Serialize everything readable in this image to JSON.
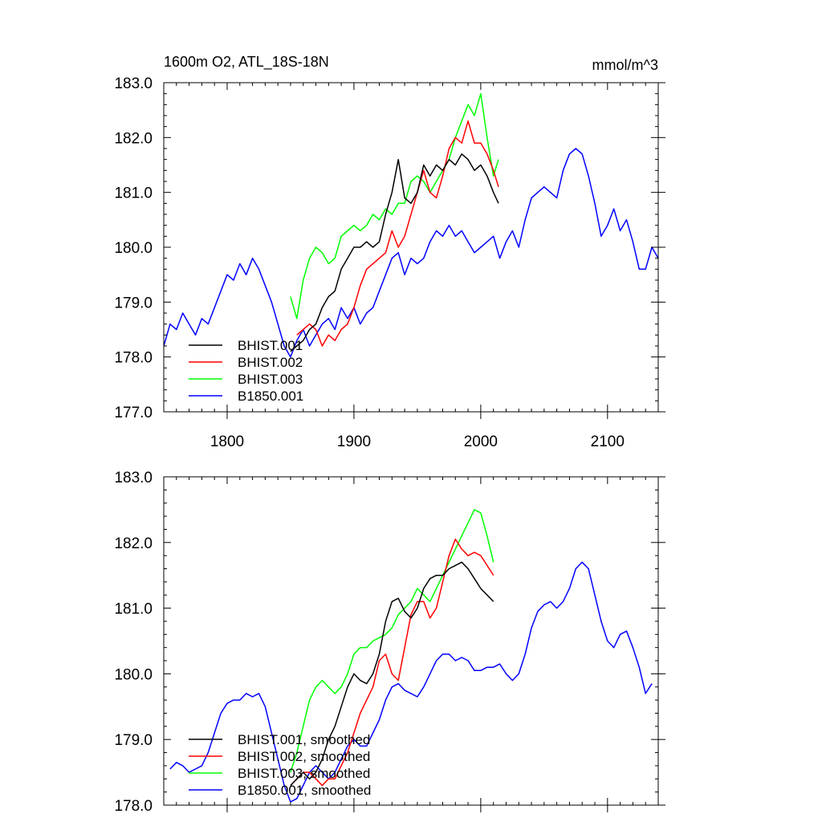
{
  "chart_data": [
    {
      "type": "line",
      "title": "1600m O2, ATL_18S-18N",
      "units": "mmol/m^3",
      "xlim": [
        1750,
        2140
      ],
      "ylim": [
        177,
        183
      ],
      "xticks": [
        1800,
        1900,
        2000,
        2100
      ],
      "xtick_labels": [
        "1800",
        "1900",
        "2000",
        "2100"
      ],
      "yticks": [
        177,
        178,
        179,
        180,
        181,
        182,
        183
      ],
      "ytick_labels": [
        "177.0",
        "178.0",
        "179.0",
        "180.0",
        "181.0",
        "182.0",
        "183.0"
      ],
      "grid": false,
      "legend_position": "bottom-left",
      "series": [
        {
          "name": "BHIST.001",
          "color": "#000000",
          "x": [
            1850,
            1855,
            1860,
            1865,
            1870,
            1875,
            1880,
            1885,
            1890,
            1895,
            1900,
            1905,
            1910,
            1915,
            1920,
            1925,
            1930,
            1935,
            1940,
            1945,
            1950,
            1955,
            1960,
            1965,
            1970,
            1975,
            1980,
            1985,
            1990,
            1995,
            2000,
            2005,
            2010,
            2014
          ],
          "y": [
            178.1,
            178.2,
            178.3,
            178.5,
            178.6,
            178.9,
            179.1,
            179.2,
            179.6,
            179.8,
            180.0,
            180.0,
            180.1,
            180.0,
            180.1,
            180.6,
            181.0,
            181.6,
            180.9,
            180.8,
            181.0,
            181.5,
            181.3,
            181.5,
            181.4,
            181.6,
            181.5,
            181.7,
            181.6,
            181.4,
            181.5,
            181.3,
            181.0,
            180.8
          ]
        },
        {
          "name": "BHIST.002",
          "color": "#ff0000",
          "x": [
            1855,
            1860,
            1865,
            1870,
            1875,
            1880,
            1885,
            1890,
            1895,
            1900,
            1905,
            1910,
            1915,
            1920,
            1925,
            1930,
            1935,
            1940,
            1945,
            1950,
            1955,
            1960,
            1965,
            1970,
            1975,
            1980,
            1985,
            1990,
            1995,
            2000,
            2005,
            2010,
            2014
          ],
          "y": [
            178.4,
            178.5,
            178.6,
            178.5,
            178.2,
            178.4,
            178.3,
            178.5,
            178.6,
            178.9,
            179.3,
            179.6,
            179.7,
            179.8,
            179.9,
            180.3,
            180.0,
            180.2,
            180.6,
            181.0,
            181.4,
            181.0,
            180.9,
            181.3,
            181.8,
            182.0,
            181.9,
            182.3,
            181.9,
            181.9,
            181.7,
            181.4,
            181.1
          ]
        },
        {
          "name": "BHIST.003",
          "color": "#00ff00",
          "x": [
            1850,
            1855,
            1860,
            1865,
            1870,
            1875,
            1880,
            1885,
            1890,
            1895,
            1900,
            1905,
            1910,
            1915,
            1920,
            1925,
            1930,
            1935,
            1940,
            1945,
            1950,
            1955,
            1960,
            1965,
            1970,
            1975,
            1980,
            1985,
            1990,
            1995,
            2000,
            2005,
            2010,
            2014
          ],
          "y": [
            179.1,
            178.7,
            179.4,
            179.8,
            180.0,
            179.9,
            179.7,
            179.8,
            180.2,
            180.3,
            180.4,
            180.3,
            180.4,
            180.6,
            180.5,
            180.7,
            180.6,
            180.8,
            180.8,
            181.2,
            181.3,
            181.2,
            181.0,
            181.2,
            181.4,
            181.6,
            182.0,
            182.3,
            182.6,
            182.4,
            182.8,
            182.0,
            181.3,
            181.6
          ]
        },
        {
          "name": "B1850.001",
          "color": "#0000ff",
          "x": [
            1750,
            1755,
            1760,
            1765,
            1770,
            1775,
            1780,
            1785,
            1790,
            1795,
            1800,
            1805,
            1810,
            1815,
            1820,
            1825,
            1830,
            1835,
            1840,
            1845,
            1850,
            1855,
            1860,
            1865,
            1870,
            1875,
            1880,
            1885,
            1890,
            1895,
            1900,
            1905,
            1910,
            1915,
            1920,
            1925,
            1930,
            1935,
            1940,
            1945,
            1950,
            1955,
            1960,
            1965,
            1970,
            1975,
            1980,
            1985,
            1990,
            1995,
            2000,
            2005,
            2010,
            2015,
            2020,
            2025,
            2030,
            2035,
            2040,
            2045,
            2050,
            2055,
            2060,
            2065,
            2070,
            2075,
            2080,
            2085,
            2090,
            2095,
            2100,
            2105,
            2110,
            2115,
            2120,
            2125,
            2130,
            2135,
            2140
          ],
          "y": [
            178.2,
            178.6,
            178.5,
            178.8,
            178.6,
            178.4,
            178.7,
            178.6,
            178.9,
            179.2,
            179.5,
            179.4,
            179.7,
            179.5,
            179.8,
            179.6,
            179.3,
            179.0,
            178.6,
            178.2,
            178.0,
            178.3,
            178.5,
            178.2,
            178.4,
            178.6,
            178.7,
            178.5,
            178.9,
            178.7,
            178.9,
            178.6,
            178.8,
            178.9,
            179.2,
            179.5,
            179.8,
            179.9,
            179.5,
            179.8,
            179.7,
            179.8,
            180.1,
            180.3,
            180.2,
            180.4,
            180.2,
            180.3,
            180.1,
            179.9,
            180.0,
            180.1,
            180.2,
            179.8,
            180.1,
            180.3,
            180.0,
            180.5,
            180.9,
            181.0,
            181.1,
            181.0,
            180.9,
            181.4,
            181.7,
            181.8,
            181.7,
            181.3,
            180.8,
            180.2,
            180.4,
            180.7,
            180.3,
            180.5,
            180.1,
            179.6,
            179.6,
            180.0,
            179.8
          ]
        }
      ]
    },
    {
      "type": "line",
      "title": "",
      "xlim": [
        1750,
        2140
      ],
      "ylim": [
        178,
        183
      ],
      "xticks": [
        1800,
        1900,
        2000,
        2100
      ],
      "xtick_labels": [
        "",
        "",
        "",
        ""
      ],
      "yticks": [
        178,
        179,
        180,
        181,
        182,
        183
      ],
      "ytick_labels": [
        "178.0",
        "179.0",
        "180.0",
        "181.0",
        "182.0",
        "183.0"
      ],
      "grid": false,
      "legend_position": "bottom-left",
      "series": [
        {
          "name": "BHIST.001, smoothed",
          "color": "#000000",
          "x": [
            1850,
            1855,
            1860,
            1865,
            1870,
            1875,
            1880,
            1885,
            1890,
            1895,
            1900,
            1905,
            1910,
            1915,
            1920,
            1925,
            1930,
            1935,
            1940,
            1945,
            1950,
            1955,
            1960,
            1965,
            1970,
            1975,
            1980,
            1985,
            1990,
            1995,
            2000,
            2005,
            2010
          ],
          "y": [
            178.3,
            178.4,
            178.5,
            178.4,
            178.5,
            178.7,
            179.0,
            179.2,
            179.5,
            179.8,
            180.0,
            179.9,
            179.85,
            180.0,
            180.3,
            180.8,
            181.1,
            181.15,
            180.95,
            180.85,
            181.0,
            181.3,
            181.45,
            181.5,
            181.5,
            181.6,
            181.65,
            181.7,
            181.6,
            181.45,
            181.3,
            181.2,
            181.1
          ]
        },
        {
          "name": "BHIST.002, smoothed",
          "color": "#ff0000",
          "x": [
            1850,
            1855,
            1860,
            1865,
            1870,
            1875,
            1880,
            1885,
            1890,
            1895,
            1900,
            1905,
            1910,
            1915,
            1920,
            1925,
            1930,
            1935,
            1940,
            1945,
            1950,
            1955,
            1960,
            1965,
            1970,
            1975,
            1980,
            1985,
            1990,
            1995,
            2000,
            2005,
            2010
          ],
          "y": [
            178.3,
            178.4,
            178.5,
            178.5,
            178.4,
            178.3,
            178.4,
            178.4,
            178.6,
            178.8,
            179.1,
            179.4,
            179.6,
            179.8,
            180.2,
            180.3,
            180.0,
            179.9,
            180.4,
            180.9,
            181.1,
            181.1,
            180.85,
            181.0,
            181.4,
            181.8,
            182.05,
            181.9,
            181.8,
            181.85,
            181.8,
            181.65,
            181.5
          ]
        },
        {
          "name": "BHIST.003, smoothed",
          "color": "#00ff00",
          "x": [
            1850,
            1855,
            1860,
            1865,
            1870,
            1875,
            1880,
            1885,
            1890,
            1895,
            1900,
            1905,
            1910,
            1915,
            1920,
            1925,
            1930,
            1935,
            1940,
            1945,
            1950,
            1955,
            1960,
            1965,
            1970,
            1975,
            1980,
            1985,
            1990,
            1995,
            2000,
            2005,
            2010
          ],
          "y": [
            178.5,
            178.8,
            179.2,
            179.6,
            179.8,
            179.9,
            179.8,
            179.7,
            179.8,
            180.0,
            180.3,
            180.4,
            180.4,
            180.5,
            180.55,
            180.6,
            180.7,
            180.9,
            181.0,
            181.1,
            181.3,
            181.2,
            181.1,
            181.3,
            181.5,
            181.7,
            181.9,
            182.1,
            182.3,
            182.5,
            182.45,
            182.1,
            181.7
          ]
        },
        {
          "name": "B1850.001, smoothed",
          "color": "#0000ff",
          "x": [
            1755,
            1760,
            1765,
            1770,
            1775,
            1780,
            1785,
            1790,
            1795,
            1800,
            1805,
            1810,
            1815,
            1820,
            1825,
            1830,
            1835,
            1840,
            1845,
            1850,
            1855,
            1860,
            1865,
            1870,
            1875,
            1880,
            1885,
            1890,
            1895,
            1900,
            1905,
            1910,
            1915,
            1920,
            1925,
            1930,
            1935,
            1940,
            1945,
            1950,
            1955,
            1960,
            1965,
            1970,
            1975,
            1980,
            1985,
            1990,
            1995,
            2000,
            2005,
            2010,
            2015,
            2020,
            2025,
            2030,
            2035,
            2040,
            2045,
            2050,
            2055,
            2060,
            2065,
            2070,
            2075,
            2080,
            2085,
            2090,
            2095,
            2100,
            2105,
            2110,
            2115,
            2120,
            2125,
            2130,
            2135
          ],
          "y": [
            178.55,
            178.65,
            178.6,
            178.5,
            178.55,
            178.6,
            178.8,
            179.1,
            179.4,
            179.55,
            179.6,
            179.6,
            179.7,
            179.65,
            179.7,
            179.5,
            179.1,
            178.7,
            178.3,
            178.05,
            178.1,
            178.3,
            178.5,
            178.6,
            178.5,
            178.4,
            178.5,
            178.7,
            178.9,
            179.0,
            178.9,
            178.9,
            179.1,
            179.3,
            179.6,
            179.8,
            179.85,
            179.75,
            179.7,
            179.65,
            179.8,
            180.0,
            180.2,
            180.3,
            180.3,
            180.2,
            180.25,
            180.2,
            180.05,
            180.05,
            180.1,
            180.1,
            180.15,
            180.0,
            179.9,
            180.0,
            180.3,
            180.7,
            180.95,
            181.05,
            181.1,
            181.0,
            181.1,
            181.3,
            181.6,
            181.7,
            181.6,
            181.2,
            180.8,
            180.5,
            180.4,
            180.6,
            180.65,
            180.4,
            180.1,
            179.7,
            179.85
          ]
        }
      ]
    }
  ]
}
